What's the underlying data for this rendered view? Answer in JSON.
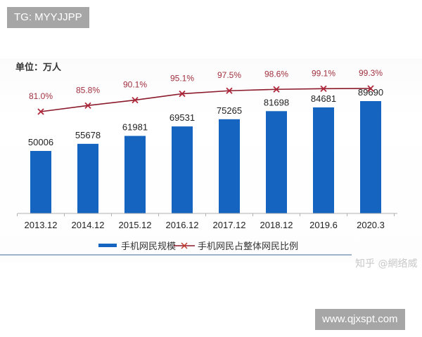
{
  "badges": {
    "top_left": "TG: MYYJJPP",
    "bottom_right": "www.qjxspt.com"
  },
  "watermark": "知乎 @網络威",
  "chart_data": {
    "type": "bar",
    "title": "",
    "unit_label": "单位：万人",
    "xlabel": "",
    "ylabel": "万人",
    "categories": [
      "2013.12",
      "2014.12",
      "2015.12",
      "2016.12",
      "2017.12",
      "2018.12",
      "2019.6",
      "2020.3"
    ],
    "series": [
      {
        "name": "手机网民规模",
        "type": "bar",
        "color": "#1565c0",
        "values": [
          50006,
          55678,
          61981,
          69531,
          75265,
          81698,
          84681,
          89690
        ],
        "labels": [
          "50006",
          "55678",
          "61981",
          "69531",
          "75265",
          "81698",
          "84681",
          "89690"
        ]
      },
      {
        "name": "手机网民占整体网民比例",
        "type": "line",
        "color": "#8b1a2b",
        "marker": "x",
        "values": [
          81.0,
          85.8,
          90.1,
          95.1,
          97.5,
          98.6,
          99.1,
          99.3
        ],
        "labels": [
          "81.0%",
          "85.8%",
          "90.1%",
          "95.1%",
          "97.5%",
          "98.6%",
          "99.1%",
          "99.3%"
        ]
      }
    ],
    "grid": false,
    "legend_position": "bottom",
    "y_axis_visible": false
  },
  "legend": {
    "bar_label": "手机网民规模",
    "line_label": "手机网民占整体网民比例"
  }
}
